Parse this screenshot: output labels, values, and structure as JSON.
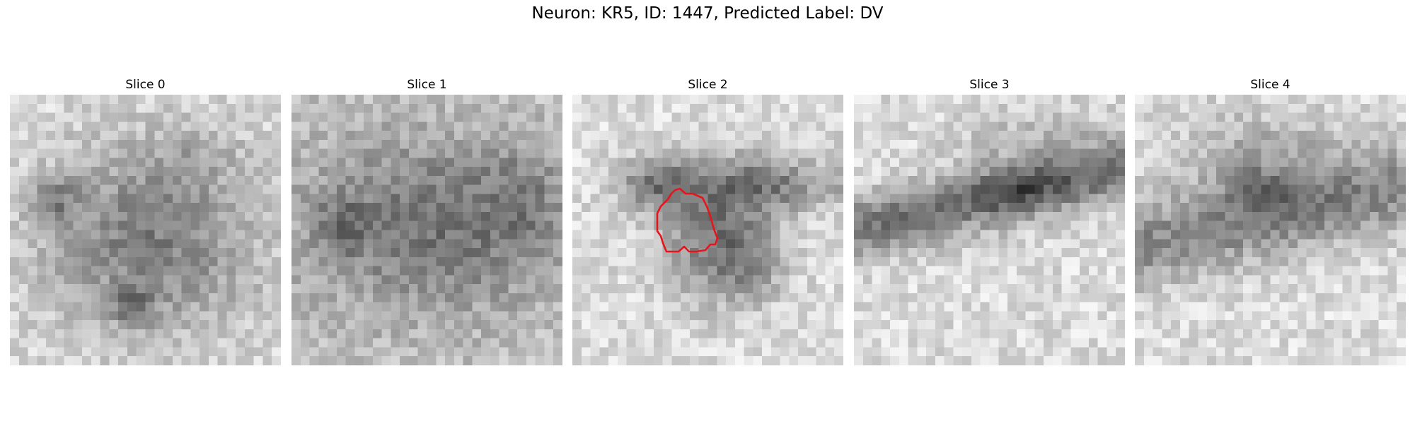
{
  "figure": {
    "title": "Neuron: KR5, ID: 1447, Predicted Label: DV",
    "colormap": "gray",
    "grid_size": 30,
    "contour_color": "#e8141b"
  },
  "slices": [
    {
      "title": "Slice 0",
      "pattern": "blob-center"
    },
    {
      "title": "Slice 1",
      "pattern": "wide-blob"
    },
    {
      "title": "Slice 2",
      "pattern": "v-shape",
      "has_contour": true
    },
    {
      "title": "Slice 3",
      "pattern": "horizontal-band"
    },
    {
      "title": "Slice 4",
      "pattern": "upper-band"
    }
  ]
}
